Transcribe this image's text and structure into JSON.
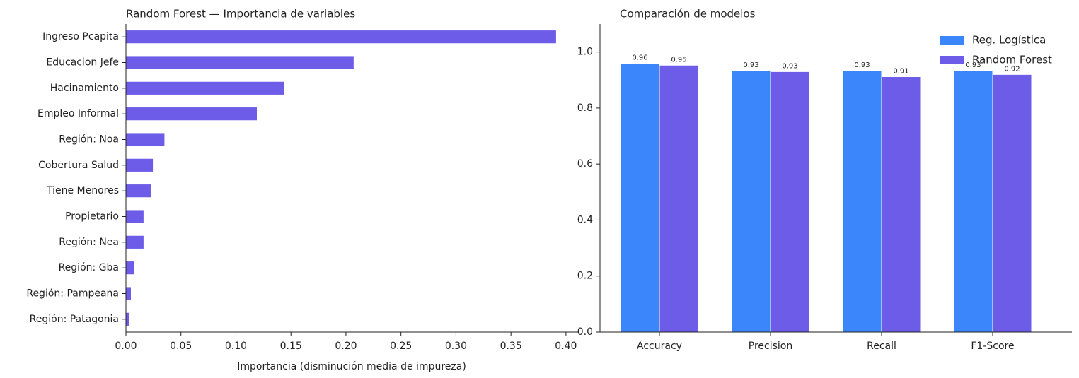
{
  "chart_data": [
    {
      "type": "barh",
      "title": "Random Forest — Importancia de variables",
      "xlabel": "Importancia (disminución media de impureza)",
      "categories": [
        "Ingreso Pcapita",
        "Educacion Jefe",
        "Hacinamiento",
        "Empleo Informal",
        "Región: Noa",
        "Cobertura Salud",
        "Tiene Menores",
        "Propietario",
        "Región: Nea",
        "Región: Gba",
        "Región: Pampeana",
        "Región: Patagonia"
      ],
      "values": [
        0.391,
        0.207,
        0.144,
        0.119,
        0.035,
        0.0245,
        0.0225,
        0.016,
        0.016,
        0.0077,
        0.0045,
        0.0026
      ],
      "color": "#6c5ce7",
      "xlim": [
        0,
        0.411
      ],
      "xticks": [
        {
          "value": 0,
          "label": "0.00"
        },
        {
          "value": 0.05,
          "label": "0.05"
        },
        {
          "value": 0.1,
          "label": "0.10"
        },
        {
          "value": 0.15,
          "label": "0.15"
        },
        {
          "value": 0.2,
          "label": "0.20"
        },
        {
          "value": 0.25,
          "label": "0.25"
        },
        {
          "value": 0.3,
          "label": "0.30"
        },
        {
          "value": 0.35,
          "label": "0.35"
        },
        {
          "value": 0.4,
          "label": "0.40"
        }
      ]
    },
    {
      "type": "bar",
      "title": "Comparación de modelos",
      "categories": [
        "Accuracy",
        "Precision",
        "Recall",
        "F1-Score"
      ],
      "series": [
        {
          "name": "Reg. Logística",
          "color": "#3b86fb",
          "values": [
            0.96,
            0.934,
            0.934,
            0.934
          ],
          "value_labels": [
            "0.96",
            "0.93",
            "0.93",
            "0.93"
          ]
        },
        {
          "name": "Random Forest",
          "color": "#6c5ce7",
          "values": [
            0.953,
            0.93,
            0.912,
            0.92
          ],
          "value_labels": [
            "0.95",
            "0.93",
            "0.91",
            "0.92"
          ]
        }
      ],
      "ylim": [
        0,
        1.1
      ],
      "yticks": [
        {
          "value": 0,
          "label": "0.0"
        },
        {
          "value": 0.2,
          "label": "0.2"
        },
        {
          "value": 0.4,
          "label": "0.4"
        },
        {
          "value": 0.6,
          "label": "0.6"
        },
        {
          "value": 0.8,
          "label": "0.8"
        },
        {
          "value": 1,
          "label": "1.0"
        }
      ],
      "legend": "upper right"
    }
  ]
}
